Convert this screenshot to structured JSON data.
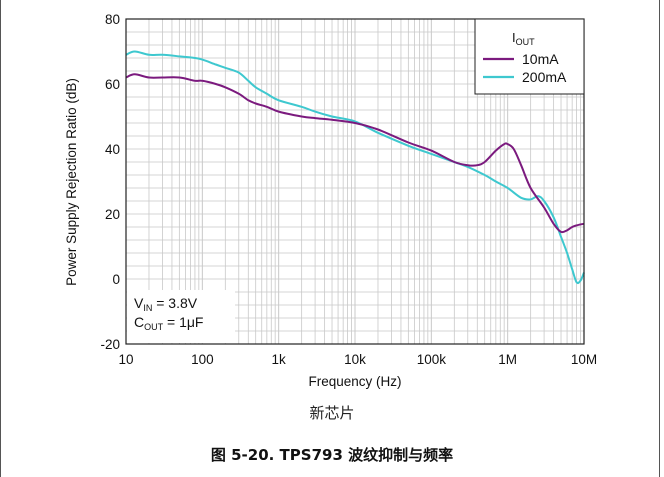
{
  "chart_data": {
    "type": "line",
    "xlabel": "Frequency (Hz)",
    "ylabel": "Power Supply Rejection Ratio (dB)",
    "x_scale": "log",
    "xlim": [
      10,
      10000000
    ],
    "ylim": [
      -20,
      80
    ],
    "x_ticks": [
      10,
      100,
      1000,
      10000,
      100000,
      1000000,
      10000000
    ],
    "x_tick_labels": [
      "10",
      "100",
      "1k",
      "10k",
      "100k",
      "1M",
      "10M"
    ],
    "y_ticks": [
      -20,
      0,
      20,
      40,
      60,
      80
    ],
    "y_tick_labels": [
      "-20",
      "0",
      "20",
      "40",
      "60",
      "80"
    ],
    "grid": true,
    "legend": {
      "title_main": "I",
      "title_sub": "OUT",
      "placement": "top-right"
    },
    "annotation": {
      "line1_main": "V",
      "line1_sub": "IN",
      "line1_rest": " = 3.8V",
      "line2_main": "C",
      "line2_sub": "OUT",
      "line2_rest": " = 1μF"
    },
    "series": [
      {
        "name": "10mA",
        "color": "#7b1a7e",
        "x": [
          10,
          13,
          20,
          30,
          50,
          80,
          100,
          150,
          200,
          300,
          400,
          500,
          700,
          1000,
          2000,
          3000,
          5000,
          10000,
          20000,
          50000,
          100000,
          200000,
          300000,
          400000,
          500000,
          700000,
          900000,
          1000000,
          1200000,
          1500000,
          2000000,
          3000000,
          4000000,
          5000000,
          6000000,
          7000000,
          8000000,
          10000000
        ],
        "y": [
          62,
          63,
          62,
          62,
          62,
          61,
          61,
          60,
          59,
          57,
          55,
          54,
          53,
          51.5,
          50,
          49.5,
          49,
          48,
          46,
          42,
          39.5,
          36,
          35,
          35,
          36,
          39.5,
          41.5,
          41.5,
          40,
          35,
          28,
          22,
          17,
          14.5,
          15,
          16,
          16.5,
          17
        ]
      },
      {
        "name": "200mA",
        "color": "#3ec8cf",
        "x": [
          10,
          13,
          20,
          30,
          50,
          80,
          100,
          150,
          200,
          300,
          400,
          500,
          700,
          1000,
          2000,
          3000,
          5000,
          10000,
          20000,
          50000,
          100000,
          200000,
          300000,
          500000,
          700000,
          1000000,
          1500000,
          2000000,
          2500000,
          3000000,
          4000000,
          5000000,
          6000000,
          7000000,
          8000000,
          9000000,
          10000000
        ],
        "y": [
          69,
          70,
          69,
          69,
          68.5,
          68,
          67.5,
          66,
          65,
          63.5,
          61,
          59,
          57,
          55,
          53,
          51.5,
          50,
          48.5,
          45,
          41,
          38.5,
          36,
          34.5,
          32,
          30,
          28,
          25,
          24.5,
          25.5,
          24,
          19,
          13,
          8,
          3,
          -1,
          -0.5,
          2
        ]
      }
    ]
  },
  "figure": {
    "subcaption": "新芯片",
    "caption": "图 5-20. TPS793 波纹抑制与频率"
  }
}
